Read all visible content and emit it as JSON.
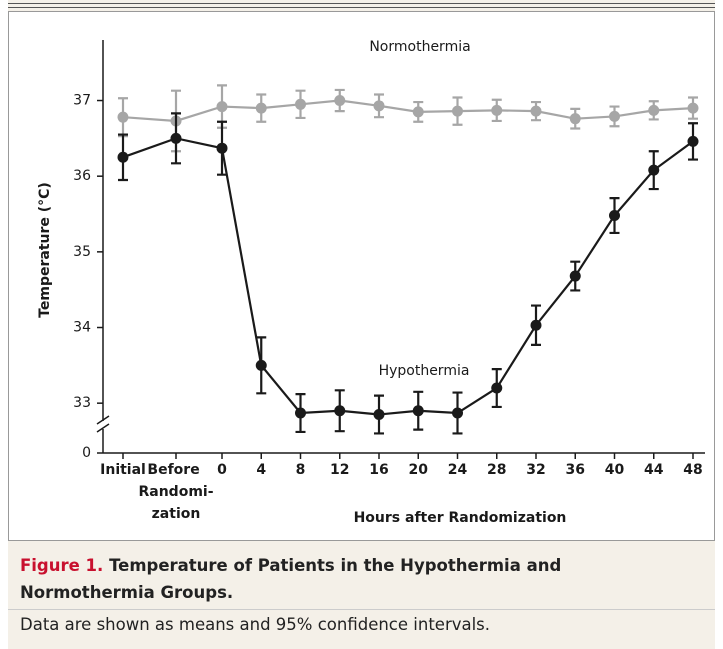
{
  "chart_data": {
    "type": "line",
    "x_label": "Hours after Randomization",
    "y_label": "Temperature (°C)",
    "categories": [
      "Initial",
      "Before Randomi-zation",
      "0",
      "4",
      "8",
      "12",
      "16",
      "20",
      "24",
      "28",
      "32",
      "36",
      "40",
      "44",
      "48"
    ],
    "series": [
      {
        "name": "Normothermia",
        "color": "#a6a6a6",
        "values": [
          36.78,
          36.73,
          36.92,
          36.9,
          36.95,
          37.0,
          36.93,
          36.85,
          36.86,
          36.87,
          36.86,
          36.76,
          36.79,
          36.87,
          36.9
        ],
        "errors": [
          0.25,
          0.4,
          0.28,
          0.18,
          0.18,
          0.14,
          0.15,
          0.13,
          0.18,
          0.14,
          0.12,
          0.13,
          0.13,
          0.12,
          0.14
        ]
      },
      {
        "name": "Hypothermia",
        "color": "#1a1a1a",
        "values": [
          36.25,
          36.5,
          36.37,
          33.5,
          32.87,
          32.9,
          32.85,
          32.9,
          32.87,
          33.2,
          34.03,
          34.68,
          35.48,
          36.08,
          36.46
        ],
        "errors": [
          0.3,
          0.33,
          0.35,
          0.37,
          0.25,
          0.27,
          0.25,
          0.25,
          0.27,
          0.25,
          0.26,
          0.19,
          0.23,
          0.25,
          0.24
        ]
      }
    ],
    "ylim": [
      32.5,
      37.8
    ],
    "yticks": [
      33,
      34,
      35,
      36,
      37
    ],
    "y_floor_tick": 0,
    "grid": false
  },
  "caption": {
    "label": "Figure 1.",
    "title": "Temperature of Patients in the Hypothermia and Normothermia Groups.",
    "note": "Data are shown as means and 95% confidence intervals."
  }
}
